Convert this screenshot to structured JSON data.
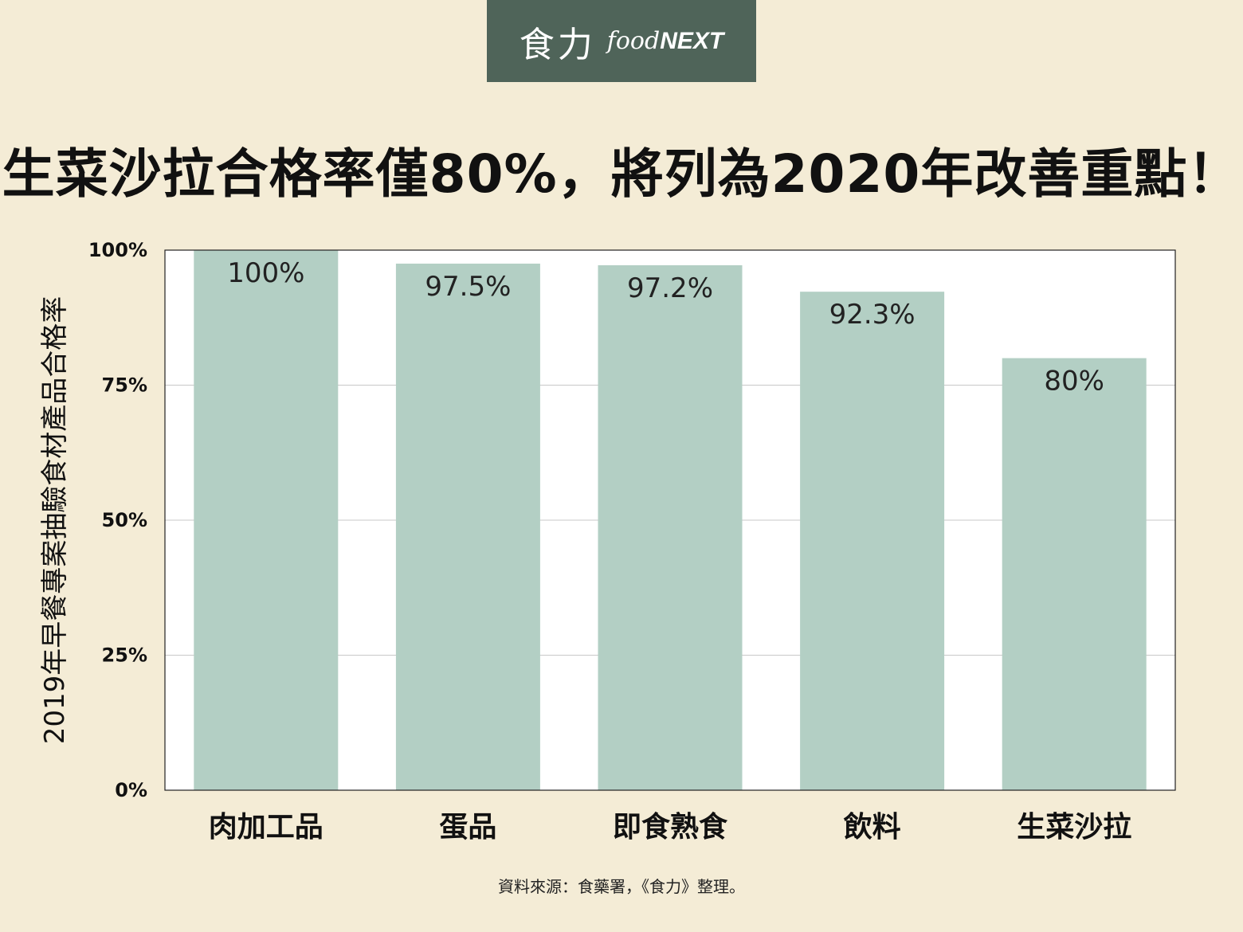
{
  "logo": {
    "zh": "食力",
    "en_prefix": "food",
    "en_suffix": "NEXT"
  },
  "title": "生菜沙拉合格率僅80%，將列為2020年改善重點！",
  "source": "資料來源：食藥署，《食力》整理。",
  "colors": {
    "bar": "#b3cfc4",
    "background": "#f4ecd6",
    "logo_bg": "#4f6459"
  },
  "chart_data": {
    "type": "bar",
    "categories": [
      "肉加工品",
      "蛋品",
      "即食熟食",
      "飲料",
      "生菜沙拉"
    ],
    "values": [
      100,
      97.5,
      97.2,
      92.3,
      80
    ],
    "value_labels": [
      "100%",
      "97.5%",
      "97.2%",
      "92.3%",
      "80%"
    ],
    "ylabel": "2019年早餐專案抽驗食材產品合格率",
    "ylim": [
      0,
      100
    ],
    "yticks": [
      0,
      25,
      50,
      75,
      100
    ],
    "ytick_labels": [
      "0%",
      "25%",
      "50%",
      "75%",
      "100%"
    ],
    "grid": true
  }
}
